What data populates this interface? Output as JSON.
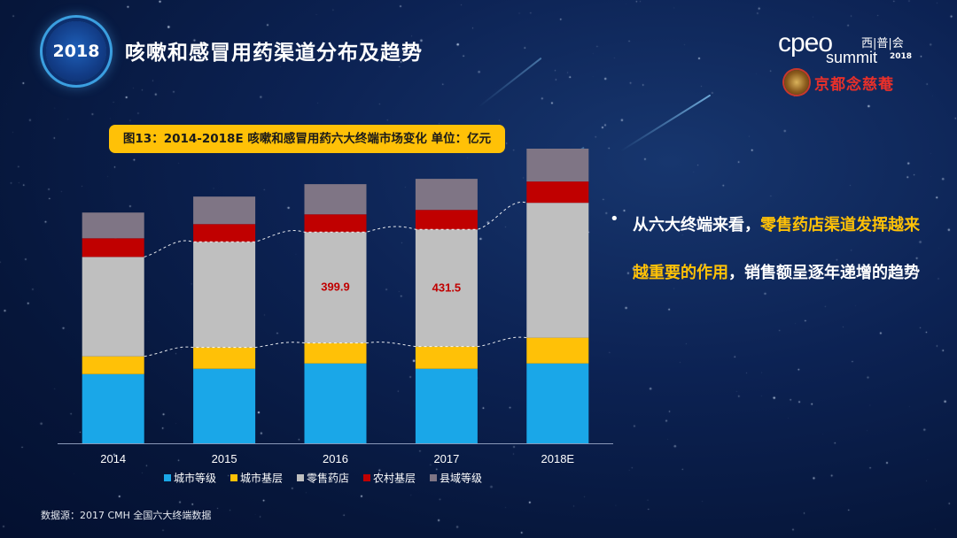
{
  "header": {
    "year_badge": "2018",
    "title": "咳嗽和感冒用药渠道分布及趋势"
  },
  "logo": {
    "word": "cpeo",
    "cn": "西|普|会",
    "summit": "summit",
    "summit_year": "2018",
    "brand": "京都念慈菴"
  },
  "chart_caption": "图13：2014-2018E 咳嗽和感冒用药六大终端市场变化 单位：亿元",
  "chart_data": {
    "type": "bar",
    "stacked": true,
    "categories": [
      "2014",
      "2015",
      "2016",
      "2017",
      "2018E"
    ],
    "series": [
      {
        "name": "城市等级",
        "color": "#1aa7e8",
        "values": [
          78,
          84,
          90,
          84,
          90
        ]
      },
      {
        "name": "城市基层",
        "color": "#ffc107",
        "values": [
          20,
          24,
          23,
          25,
          29
        ]
      },
      {
        "name": "零售药店",
        "color": "#bfbfbf",
        "values": [
          112,
          119,
          125,
          132,
          152
        ]
      },
      {
        "name": "农村基层",
        "color": "#c00000",
        "values": [
          21,
          20,
          20,
          22,
          24
        ]
      },
      {
        "name": "县域等级",
        "color": "#7f7585",
        "values": [
          29,
          31,
          34,
          35,
          37
        ]
      }
    ],
    "data_labels": [
      {
        "category": "2016",
        "series": "零售药店",
        "text": "399.9"
      },
      {
        "category": "2017",
        "series": "零售药店",
        "text": "431.5"
      }
    ],
    "ylim": [
      0,
      330
    ],
    "legend_position": "bottom",
    "trend_lines": "dashed, across tops of 城市基层 and 零售药店"
  },
  "bullet": {
    "part1": "从六大终端来看，",
    "highlight": "零售药店渠道发挥越来越重要的作用",
    "part2": "，销售额呈逐年递增的趋势"
  },
  "source_note": "数据源：2017 CMH 全国六大终端数据"
}
